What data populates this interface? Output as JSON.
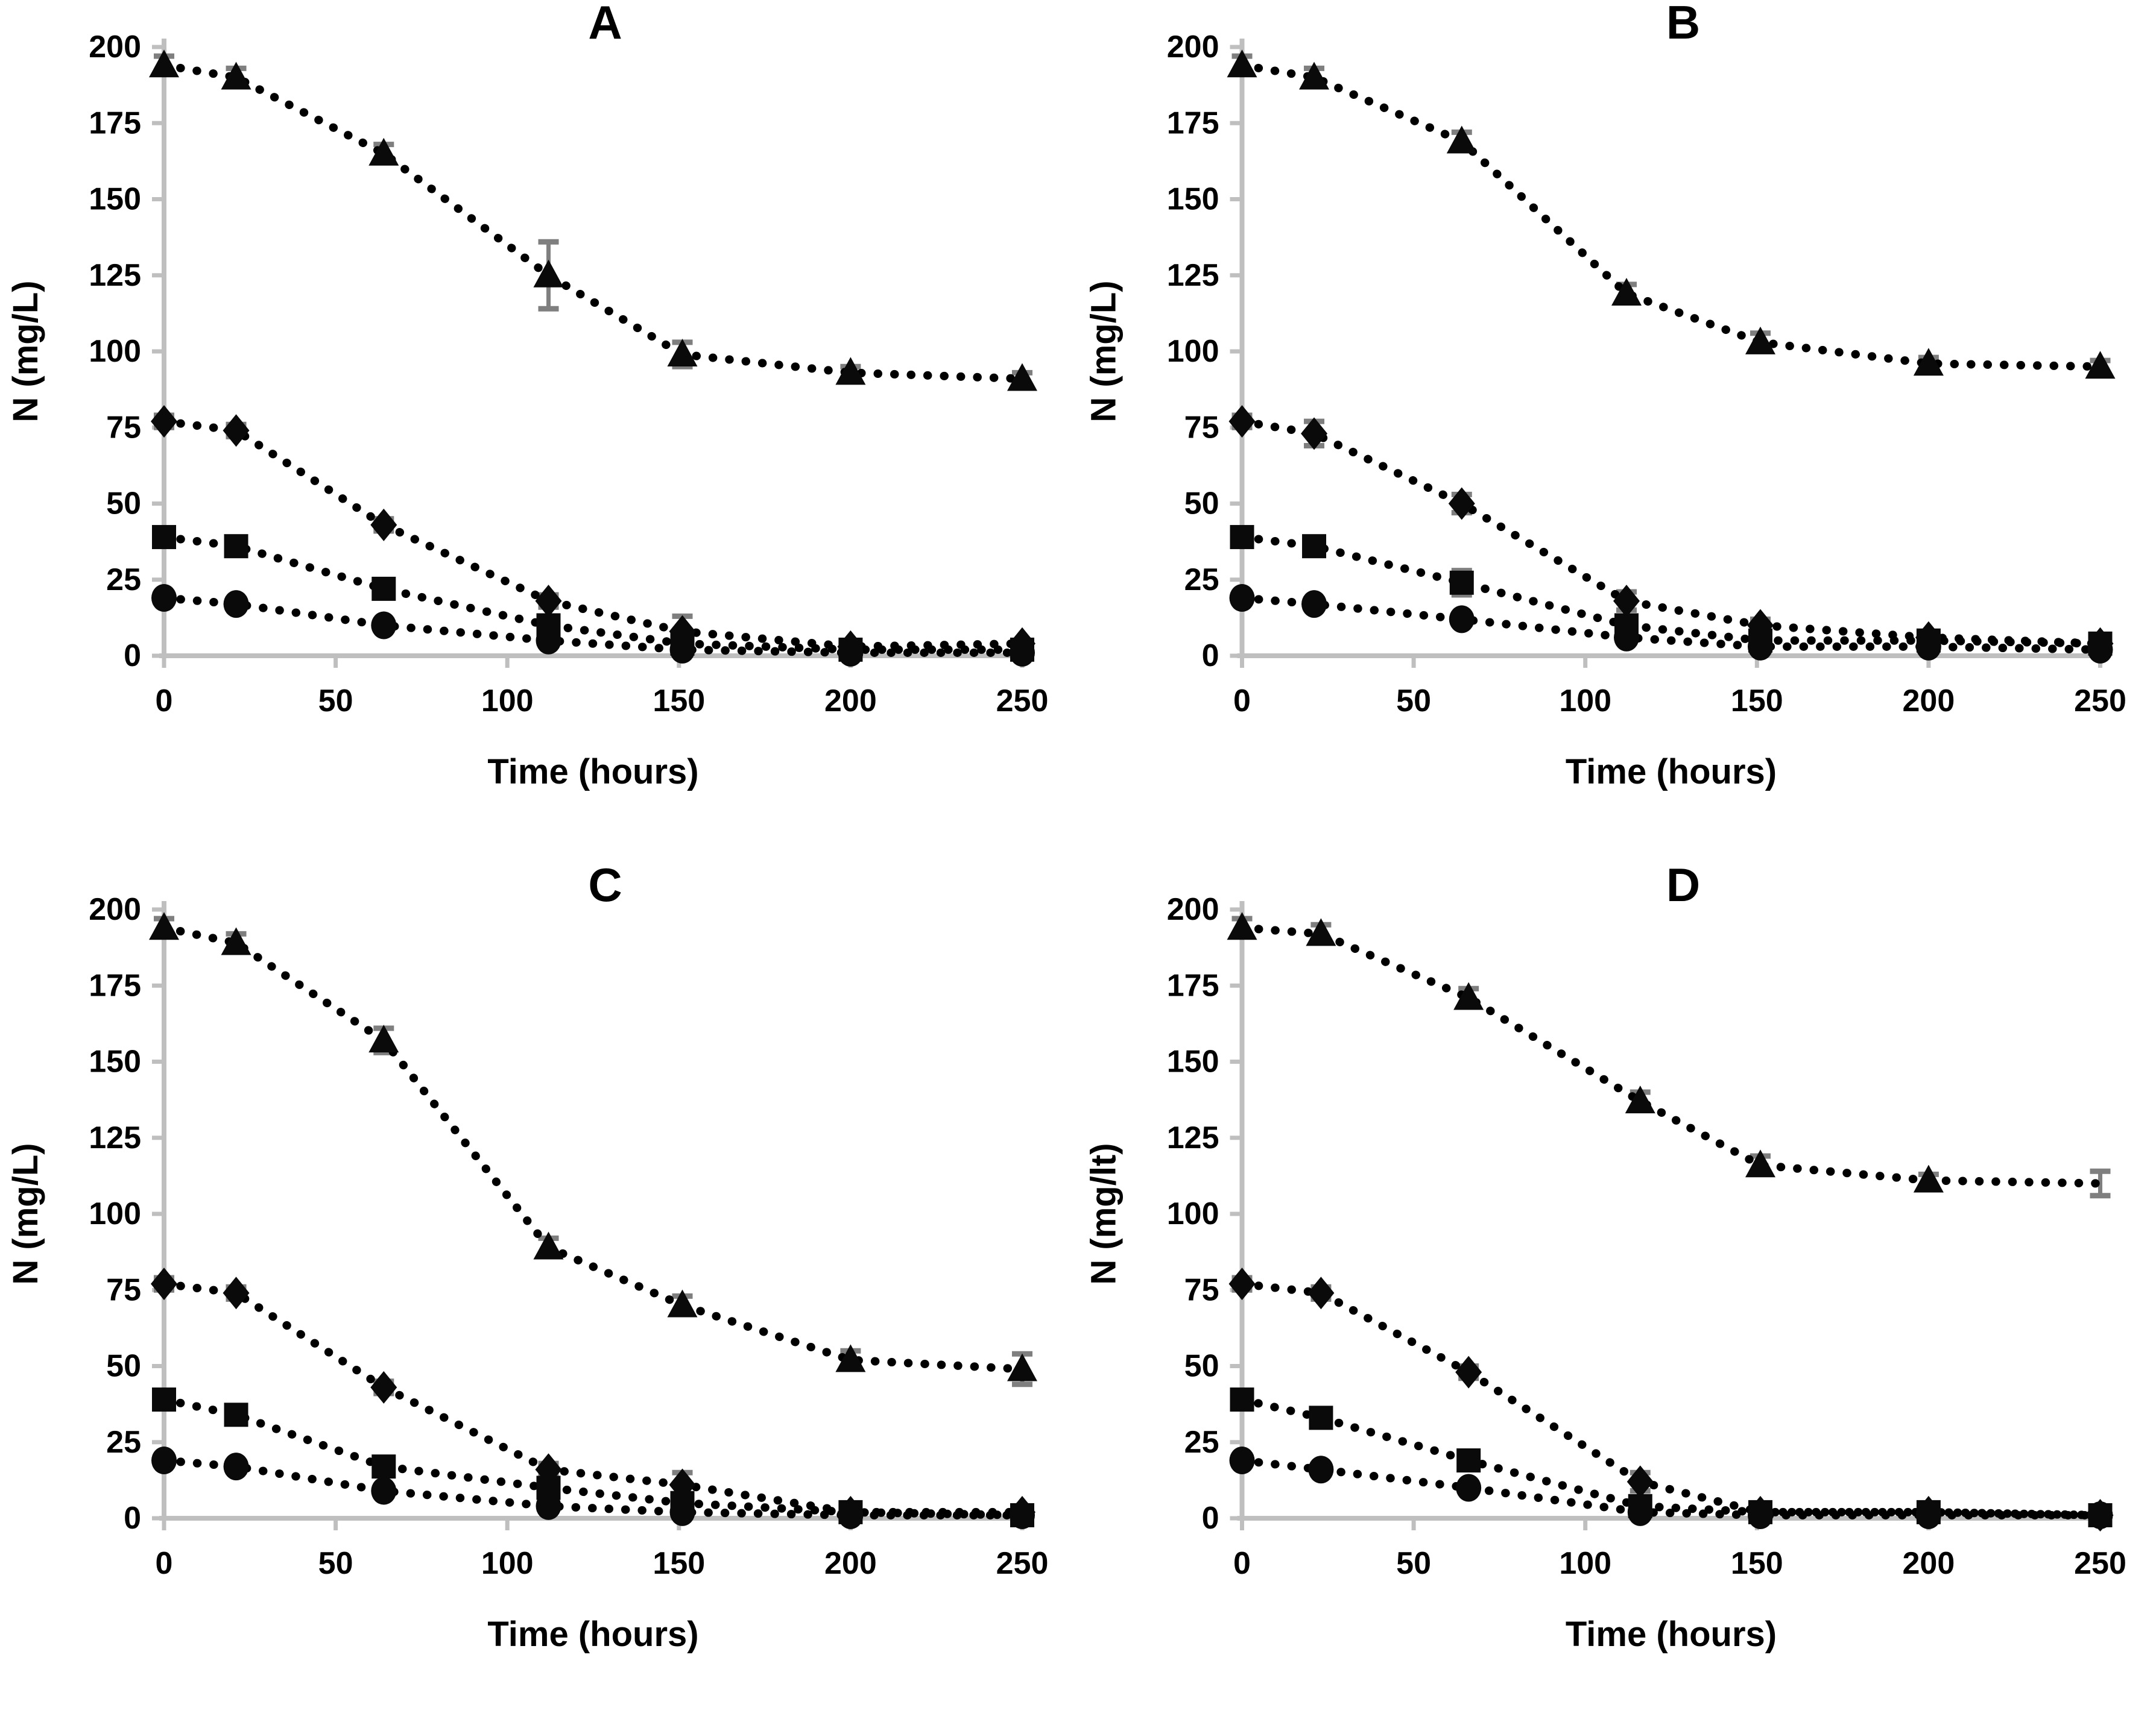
{
  "figure": {
    "background": "#ffffff",
    "panel_count": 4
  },
  "colors": {
    "marker": "#0a0a0a",
    "dotted_line": "#000000",
    "axis": "#bfbfbf",
    "error_bar": "#7f7f7f",
    "text": "#000000"
  },
  "chart_data": [
    {
      "type": "line",
      "title": "A",
      "xlabel": "Time (hours)",
      "ylabel": "N (mg/L)",
      "xlim": [
        0,
        250
      ],
      "ylim": [
        0,
        200
      ],
      "xticks": [
        0,
        50,
        100,
        150,
        200,
        250
      ],
      "yticks": [
        0,
        25,
        50,
        75,
        100,
        125,
        150,
        175,
        200
      ],
      "grid": false,
      "legend": "none",
      "x": [
        0,
        21,
        64,
        112,
        151,
        200,
        250
      ],
      "series": [
        {
          "name": "triangle-series",
          "marker": "triangle",
          "values": [
            194,
            190,
            165,
            125,
            99,
            93,
            91
          ],
          "errors": [
            3,
            3,
            3,
            11,
            4,
            2,
            2
          ],
          "hidden_markers": []
        },
        {
          "name": "diamond-series",
          "marker": "diamond",
          "values": [
            77,
            74,
            43,
            18,
            8,
            3,
            4
          ],
          "errors": [
            2,
            2,
            2,
            2,
            5,
            1,
            1
          ],
          "hidden_markers": []
        },
        {
          "name": "square-series",
          "marker": "square",
          "values": [
            39,
            36,
            22,
            10,
            4,
            2,
            2
          ],
          "errors": [
            2,
            2,
            2,
            2,
            2,
            1,
            1
          ],
          "hidden_markers": []
        },
        {
          "name": "circle-series",
          "marker": "circle",
          "values": [
            19,
            17,
            10,
            5,
            2,
            1,
            1
          ],
          "errors": [
            1,
            1,
            1,
            1,
            1,
            1,
            1
          ],
          "hidden_markers": []
        }
      ]
    },
    {
      "type": "line",
      "title": "B",
      "xlabel": "Time (hours)",
      "ylabel": "N (mg/L)",
      "xlim": [
        0,
        250
      ],
      "ylim": [
        0,
        200
      ],
      "xticks": [
        0,
        50,
        100,
        150,
        200,
        250
      ],
      "yticks": [
        0,
        25,
        50,
        75,
        100,
        125,
        150,
        175,
        200
      ],
      "grid": false,
      "legend": "none",
      "x": [
        0,
        21,
        64,
        112,
        151,
        200,
        250
      ],
      "series": [
        {
          "name": "triangle-series",
          "marker": "triangle",
          "values": [
            194,
            190,
            169,
            119,
            103,
            96,
            95
          ],
          "errors": [
            3,
            3,
            3,
            3,
            3,
            2,
            2
          ],
          "hidden_markers": []
        },
        {
          "name": "diamond-series",
          "marker": "diamond",
          "values": [
            77,
            73,
            50,
            18,
            10,
            6,
            4
          ],
          "errors": [
            2,
            4,
            3,
            3,
            2,
            1,
            1
          ],
          "hidden_markers": []
        },
        {
          "name": "square-series",
          "marker": "square",
          "values": [
            39,
            36,
            24,
            10,
            5,
            5,
            4
          ],
          "errors": [
            2,
            2,
            4,
            2,
            1,
            1,
            1
          ],
          "hidden_markers": []
        },
        {
          "name": "circle-series",
          "marker": "circle",
          "values": [
            19,
            17,
            12,
            6,
            3,
            3,
            2
          ],
          "errors": [
            1,
            1,
            1,
            1,
            1,
            1,
            1
          ],
          "hidden_markers": []
        }
      ]
    },
    {
      "type": "line",
      "title": "C",
      "xlabel": "Time (hours)",
      "ylabel": "N (mg/L)",
      "xlim": [
        0,
        250
      ],
      "ylim": [
        0,
        200
      ],
      "xticks": [
        0,
        50,
        100,
        150,
        200,
        250
      ],
      "yticks": [
        0,
        25,
        50,
        75,
        100,
        125,
        150,
        175,
        200
      ],
      "grid": false,
      "legend": "none",
      "x": [
        0,
        21,
        64,
        112,
        151,
        200,
        250
      ],
      "series": [
        {
          "name": "triangle-series",
          "marker": "triangle",
          "values": [
            194,
            189,
            157,
            89,
            70,
            52,
            49
          ],
          "errors": [
            3,
            3,
            4,
            3,
            3,
            3,
            5
          ],
          "hidden_markers": []
        },
        {
          "name": "diamond-series",
          "marker": "diamond",
          "values": [
            77,
            74,
            43,
            16,
            11,
            2,
            2
          ],
          "errors": [
            2,
            2,
            2,
            2,
            4,
            1,
            1
          ],
          "hidden_markers": []
        },
        {
          "name": "square-series",
          "marker": "square",
          "values": [
            39,
            34,
            17,
            10,
            5,
            2,
            1
          ],
          "errors": [
            2,
            2,
            2,
            3,
            1,
            1,
            1
          ],
          "hidden_markers": []
        },
        {
          "name": "circle-series",
          "marker": "circle",
          "values": [
            19,
            17,
            9,
            4,
            2,
            1,
            1
          ],
          "errors": [
            1,
            1,
            1,
            1,
            1,
            1,
            1
          ],
          "hidden_markers": []
        }
      ]
    },
    {
      "type": "line",
      "title": "D",
      "xlabel": "Time (hours)",
      "ylabel": "N (mg/lt)",
      "xlim": [
        0,
        250
      ],
      "ylim": [
        0,
        200
      ],
      "xticks": [
        0,
        50,
        100,
        150,
        200,
        250
      ],
      "yticks": [
        0,
        25,
        50,
        75,
        100,
        125,
        150,
        175,
        200
      ],
      "grid": false,
      "legend": "none",
      "x": [
        0,
        23,
        66,
        116,
        151,
        200,
        250
      ],
      "series": [
        {
          "name": "triangle-series",
          "marker": "triangle",
          "values": [
            194,
            192,
            171,
            137,
            116,
            111,
            110
          ],
          "errors": [
            3,
            3,
            3,
            3,
            3,
            2,
            4
          ],
          "hidden_markers": [
            6
          ]
        },
        {
          "name": "diamond-series",
          "marker": "diamond",
          "values": [
            77,
            74,
            48,
            12,
            2,
            2,
            1
          ],
          "errors": [
            2,
            2,
            2,
            3,
            1,
            1,
            1
          ],
          "hidden_markers": []
        },
        {
          "name": "square-series",
          "marker": "square",
          "values": [
            39,
            33,
            19,
            4,
            2,
            2,
            1
          ],
          "errors": [
            2,
            2,
            3,
            1,
            1,
            1,
            1
          ],
          "hidden_markers": []
        },
        {
          "name": "circle-series",
          "marker": "circle",
          "values": [
            19,
            16,
            10,
            2,
            1,
            1,
            1
          ],
          "errors": [
            1,
            1,
            1,
            1,
            1,
            1,
            1
          ],
          "hidden_markers": []
        }
      ]
    }
  ]
}
